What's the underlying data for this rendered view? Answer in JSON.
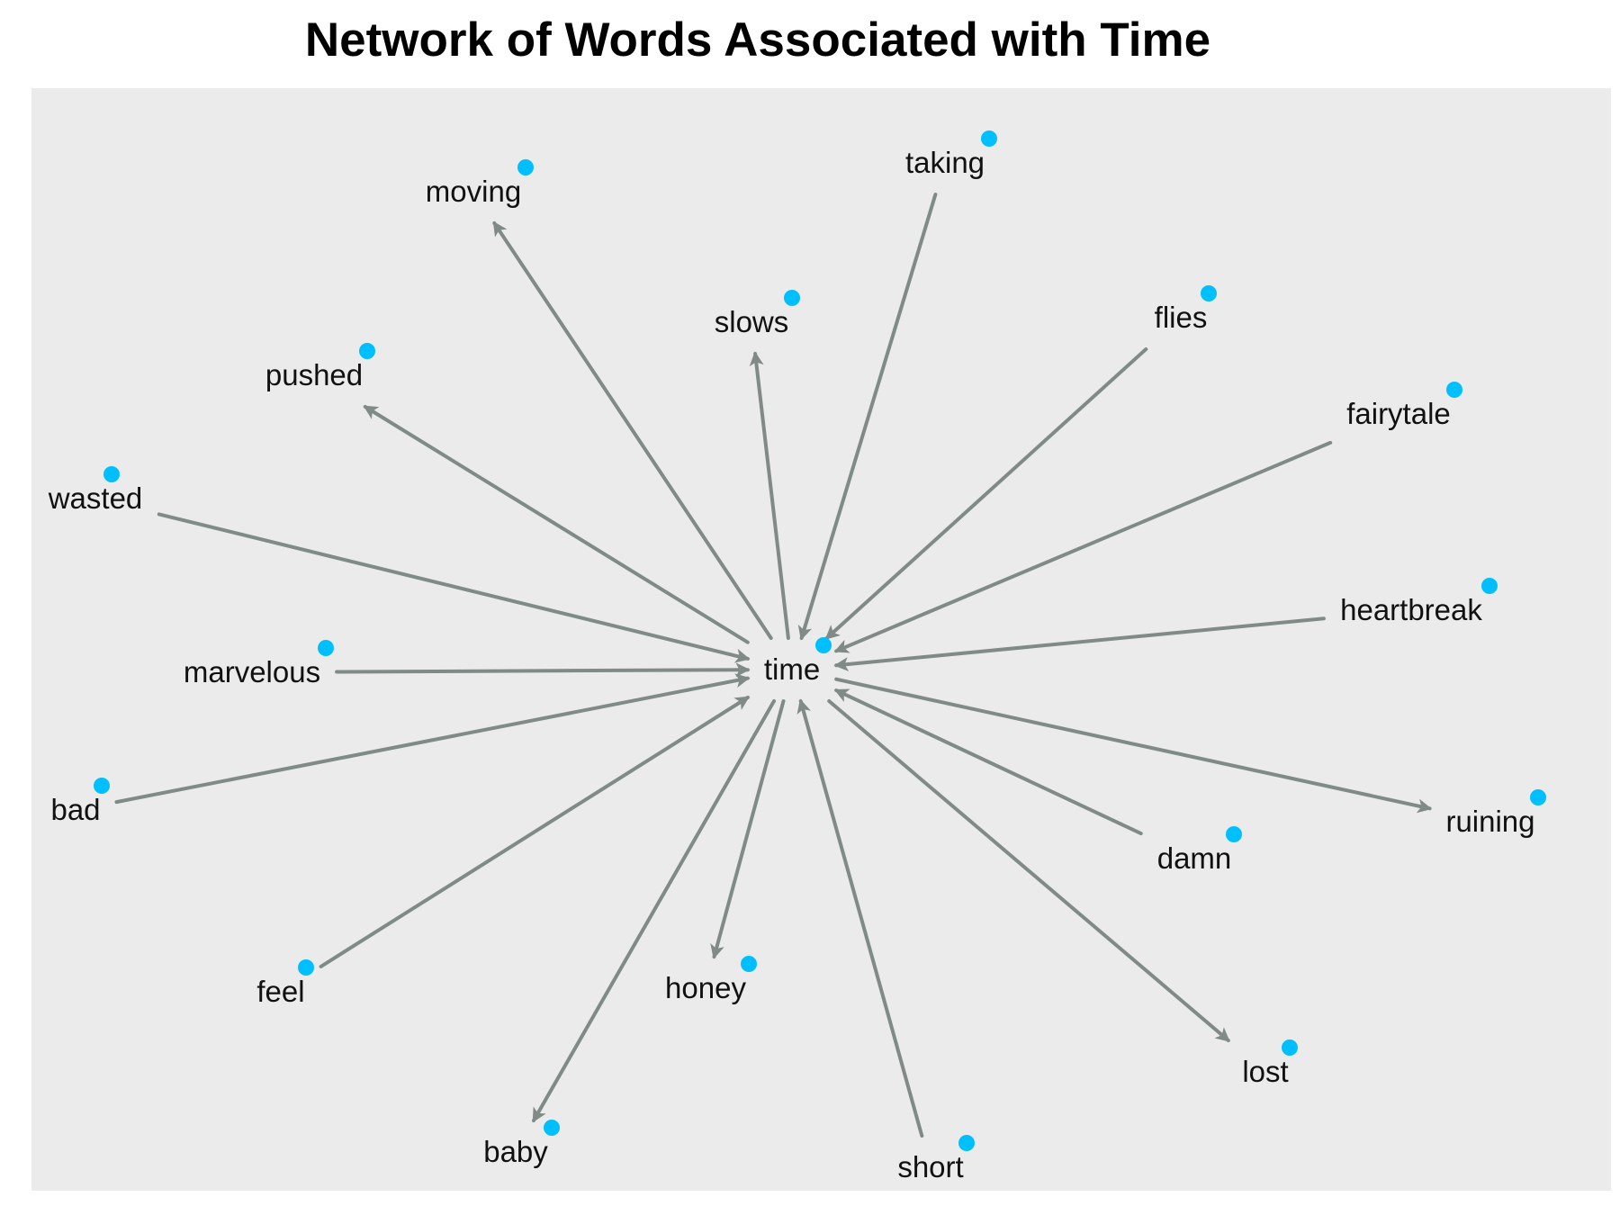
{
  "title": "Network of Words Associated with Time",
  "colors": {
    "panel": "#ebebeb",
    "node": "#00bfff",
    "edge": "#808a87",
    "label": "#111111",
    "title": "#000000"
  },
  "graph": {
    "center": "time",
    "nodes": [
      {
        "id": "time",
        "label": "time"
      },
      {
        "id": "moving",
        "label": "moving"
      },
      {
        "id": "taking",
        "label": "taking"
      },
      {
        "id": "slows",
        "label": "slows"
      },
      {
        "id": "flies",
        "label": "flies"
      },
      {
        "id": "pushed",
        "label": "pushed"
      },
      {
        "id": "fairytale",
        "label": "fairytale"
      },
      {
        "id": "wasted",
        "label": "wasted"
      },
      {
        "id": "heartbreak",
        "label": "heartbreak"
      },
      {
        "id": "marvelous",
        "label": "marvelous"
      },
      {
        "id": "bad",
        "label": "bad"
      },
      {
        "id": "ruining",
        "label": "ruining"
      },
      {
        "id": "damn",
        "label": "damn"
      },
      {
        "id": "feel",
        "label": "feel"
      },
      {
        "id": "honey",
        "label": "honey"
      },
      {
        "id": "lost",
        "label": "lost"
      },
      {
        "id": "baby",
        "label": "baby"
      },
      {
        "id": "short",
        "label": "short"
      }
    ],
    "edges": [
      {
        "from": "time",
        "to": "moving"
      },
      {
        "from": "taking",
        "to": "time"
      },
      {
        "from": "time",
        "to": "slows"
      },
      {
        "from": "flies",
        "to": "time"
      },
      {
        "from": "time",
        "to": "pushed"
      },
      {
        "from": "fairytale",
        "to": "time"
      },
      {
        "from": "wasted",
        "to": "time"
      },
      {
        "from": "heartbreak",
        "to": "time"
      },
      {
        "from": "marvelous",
        "to": "time"
      },
      {
        "from": "bad",
        "to": "time"
      },
      {
        "from": "time",
        "to": "ruining"
      },
      {
        "from": "damn",
        "to": "time"
      },
      {
        "from": "feel",
        "to": "time"
      },
      {
        "from": "time",
        "to": "honey"
      },
      {
        "from": "time",
        "to": "lost"
      },
      {
        "from": "time",
        "to": "baby"
      },
      {
        "from": "short",
        "to": "time"
      }
    ]
  }
}
